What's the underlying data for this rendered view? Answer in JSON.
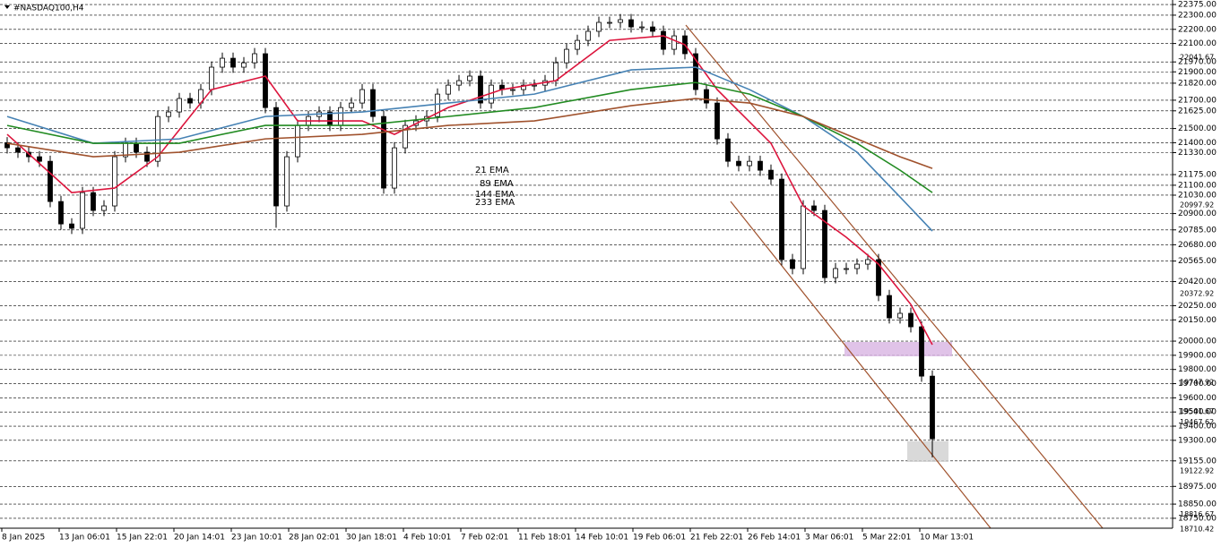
{
  "chart_data": {
    "type": "candlestick",
    "title": "#NASDAQ100,H4",
    "ylim": [
      18680,
      22407
    ],
    "yticks": [
      {
        "value": 22375,
        "label": "22375.00"
      },
      {
        "value": 22300,
        "label": "22300.00"
      },
      {
        "value": 22200,
        "label": "22200.00"
      },
      {
        "value": 22100,
        "label": "22100.00"
      },
      {
        "value": 21970,
        "label": "21970.00"
      },
      {
        "value": 21900,
        "label": "21900.00"
      },
      {
        "value": 21820,
        "label": "21820.00"
      },
      {
        "value": 21700,
        "label": "21700.00"
      },
      {
        "value": 21625,
        "label": "21625.00"
      },
      {
        "value": 21500,
        "label": "21500.00"
      },
      {
        "value": 21400,
        "label": "21400.00"
      },
      {
        "value": 21330,
        "label": "21330.00"
      },
      {
        "value": 21175,
        "label": "21175.00"
      },
      {
        "value": 21100,
        "label": "21100.00"
      },
      {
        "value": 21030,
        "label": "21030.00"
      },
      {
        "value": 20900,
        "label": "20900.00"
      },
      {
        "value": 20785,
        "label": "20785.00"
      },
      {
        "value": 20680,
        "label": "20680.00"
      },
      {
        "value": 20565,
        "label": "20565.00"
      },
      {
        "value": 20420,
        "label": "20420.00"
      },
      {
        "value": 20250,
        "label": "20250.00"
      },
      {
        "value": 20150,
        "label": "20150.00"
      },
      {
        "value": 20000,
        "label": "20000.00"
      },
      {
        "value": 19900,
        "label": "19900.00"
      },
      {
        "value": 19800,
        "label": "19800.00"
      },
      {
        "value": 19700,
        "label": "19700.00"
      },
      {
        "value": 19600,
        "label": "19600.00"
      },
      {
        "value": 19500,
        "label": "19500.00"
      },
      {
        "value": 19400,
        "label": "19400.00"
      },
      {
        "value": 19300,
        "label": "19300.00"
      },
      {
        "value": 19155,
        "label": "19155.00"
      },
      {
        "value": 18975,
        "label": "18975.00"
      },
      {
        "value": 18850,
        "label": "18850.00"
      },
      {
        "value": 18750,
        "label": "18750.00"
      }
    ],
    "price_markers": [
      {
        "value": 22041.67,
        "label": "22041.67"
      },
      {
        "value": 20997.92,
        "label": "20997.92"
      },
      {
        "value": 20372.92,
        "label": "20372.92"
      },
      {
        "value": 19747.92,
        "label": "19747.92"
      },
      {
        "value": 19541.67,
        "label": "19541.67"
      },
      {
        "value": 19467.62,
        "label": "19467.62"
      },
      {
        "value": 19122.92,
        "label": "19122.92"
      },
      {
        "value": 18816.67,
        "label": "18816.67"
      },
      {
        "value": 18710.42,
        "label": "18710.42"
      }
    ],
    "x_labels": [
      "8 Jan 2025",
      "13 Jan 06:01",
      "15 Jan 22:01",
      "20 Jan 14:01",
      "23 Jan 10:01",
      "28 Jan 02:01",
      "30 Jan 18:01",
      "4 Feb 10:01",
      "7 Feb 02:01",
      "11 Feb 18:01",
      "14 Feb 10:01",
      "19 Feb 06:01",
      "21 Feb 22:01",
      "26 Feb 14:01",
      "3 Mar 06:01",
      "5 Mar 22:01",
      "10 Mar 13:01"
    ],
    "open": [
      21400,
      21364,
      21333,
      21301,
      21269,
      20985,
      20827,
      20796,
      21048,
      20922,
      20954,
      21301,
      21396,
      21333,
      21269,
      21585,
      21617,
      21712,
      21680,
      21775,
      21933,
      21996,
      21933,
      21964,
      22028,
      21648,
      20954,
      21301,
      21522,
      21585,
      21617,
      21522,
      21648,
      21680,
      21775,
      21585,
      21080,
      21364,
      21522,
      21554,
      21585,
      21743,
      21806,
      21838,
      21870,
      21680,
      21806,
      21775,
      21775,
      21806,
      21806,
      21838,
      21964,
      22059,
      22122,
      22186,
      22249,
      22249,
      22268,
      22217,
      22217,
      22186,
      22059,
      22154,
      22028,
      21775,
      21680,
      21427,
      21269,
      21238,
      21269,
      21206,
      21143,
      20575,
      20512,
      20954,
      20922,
      20448,
      20512,
      20512,
      20543,
      20575,
      20322,
      20164,
      20196,
      20101,
      19753
    ],
    "high": [
      21440,
      21404,
      21373,
      21341,
      21309,
      21025,
      20867,
      21088,
      21088,
      20994,
      21341,
      21436,
      21436,
      21373,
      21625,
      21657,
      21752,
      21752,
      21815,
      21973,
      22036,
      22036,
      22004,
      22068,
      22068,
      21688,
      21341,
      21562,
      21625,
      21657,
      21657,
      21688,
      21720,
      21815,
      21815,
      21625,
      21404,
      21562,
      21594,
      21625,
      21783,
      21846,
      21878,
      21910,
      21910,
      21846,
      21846,
      21815,
      21846,
      21846,
      21878,
      22004,
      22099,
      22162,
      22226,
      22289,
      22289,
      22308,
      22308,
      22257,
      22257,
      22226,
      22194,
      22194,
      22068,
      21815,
      21720,
      21467,
      21309,
      21309,
      21309,
      21246,
      21183,
      20615,
      20994,
      20994,
      20962,
      20552,
      20552,
      20583,
      20615,
      20615,
      20362,
      20236,
      20236,
      20141,
      19793
    ],
    "low": [
      21324,
      21293,
      21261,
      21229,
      20945,
      20787,
      20756,
      20756,
      20882,
      20882,
      20914,
      21261,
      21293,
      21229,
      21229,
      21545,
      21577,
      21640,
      21640,
      21735,
      21893,
      21893,
      21893,
      21924,
      21608,
      20800,
      20914,
      21261,
      21482,
      21545,
      21482,
      21482,
      21608,
      21640,
      21545,
      21040,
      21040,
      21324,
      21482,
      21514,
      21545,
      21703,
      21766,
      21798,
      21640,
      21640,
      21735,
      21735,
      21735,
      21766,
      21766,
      21798,
      21924,
      22019,
      22082,
      22146,
      22209,
      22209,
      22177,
      22177,
      22146,
      22019,
      22019,
      21988,
      21735,
      21640,
      21387,
      21229,
      21198,
      21198,
      21166,
      21103,
      20535,
      20472,
      20472,
      20882,
      20408,
      20408,
      20472,
      20472,
      20503,
      20282,
      20124,
      20124,
      20061,
      19713,
      19180
    ],
    "close": [
      21364,
      21333,
      21301,
      21269,
      20985,
      20827,
      20796,
      21048,
      20922,
      20954,
      21301,
      21396,
      21333,
      21269,
      21585,
      21617,
      21712,
      21680,
      21775,
      21933,
      21996,
      21933,
      21964,
      22028,
      21648,
      20954,
      21301,
      21522,
      21585,
      21617,
      21522,
      21648,
      21680,
      21775,
      21585,
      21080,
      21364,
      21522,
      21554,
      21585,
      21743,
      21806,
      21838,
      21870,
      21680,
      21806,
      21775,
      21775,
      21806,
      21806,
      21838,
      21964,
      22059,
      22122,
      22186,
      22249,
      22249,
      22268,
      22217,
      22217,
      22186,
      22059,
      22154,
      22028,
      21775,
      21680,
      21427,
      21269,
      21238,
      21269,
      21206,
      21143,
      20575,
      20512,
      20954,
      20922,
      20448,
      20512,
      20512,
      20543,
      20575,
      20322,
      20164,
      20196,
      20101,
      19753,
      19311
    ],
    "series": [
      {
        "name": "21 EMA",
        "color": "#dc143c",
        "x": [
          0,
          6,
          10,
          14,
          19,
          24,
          27,
          33,
          36,
          41,
          46,
          51,
          56,
          61,
          63,
          66,
          71,
          74,
          78,
          81,
          84,
          86
        ],
        "values": [
          21459,
          21048,
          21080,
          21301,
          21775,
          21870,
          21554,
          21554,
          21459,
          21648,
          21775,
          21838,
          22122,
          22154,
          22091,
          21775,
          21396,
          20954,
          20733,
          20543,
          20259,
          19975
        ]
      },
      {
        "name": "89 EMA",
        "color": "#4682b4",
        "x": [
          0,
          8,
          16,
          24,
          33,
          41,
          49,
          58,
          64,
          69,
          74,
          79,
          83,
          86
        ],
        "values": [
          21585,
          21396,
          21427,
          21585,
          21617,
          21680,
          21743,
          21914,
          21933,
          21775,
          21585,
          21333,
          21017,
          20777
        ]
      },
      {
        "name": "144 EMA",
        "color": "#228b22",
        "x": [
          0,
          8,
          16,
          24,
          33,
          41,
          49,
          58,
          64,
          69,
          74,
          79,
          83,
          86
        ],
        "values": [
          21522,
          21396,
          21396,
          21522,
          21522,
          21585,
          21648,
          21775,
          21825,
          21743,
          21585,
          21396,
          21206,
          21048
        ]
      },
      {
        "name": "233 EMA",
        "color": "#a0522d",
        "x": [
          0,
          8,
          16,
          24,
          33,
          41,
          49,
          58,
          64,
          69,
          74,
          79,
          83,
          86
        ],
        "values": [
          21396,
          21301,
          21333,
          21427,
          21459,
          21522,
          21554,
          21661,
          21712,
          21680,
          21585,
          21427,
          21301,
          21219
        ]
      }
    ],
    "grid": true
  }
}
